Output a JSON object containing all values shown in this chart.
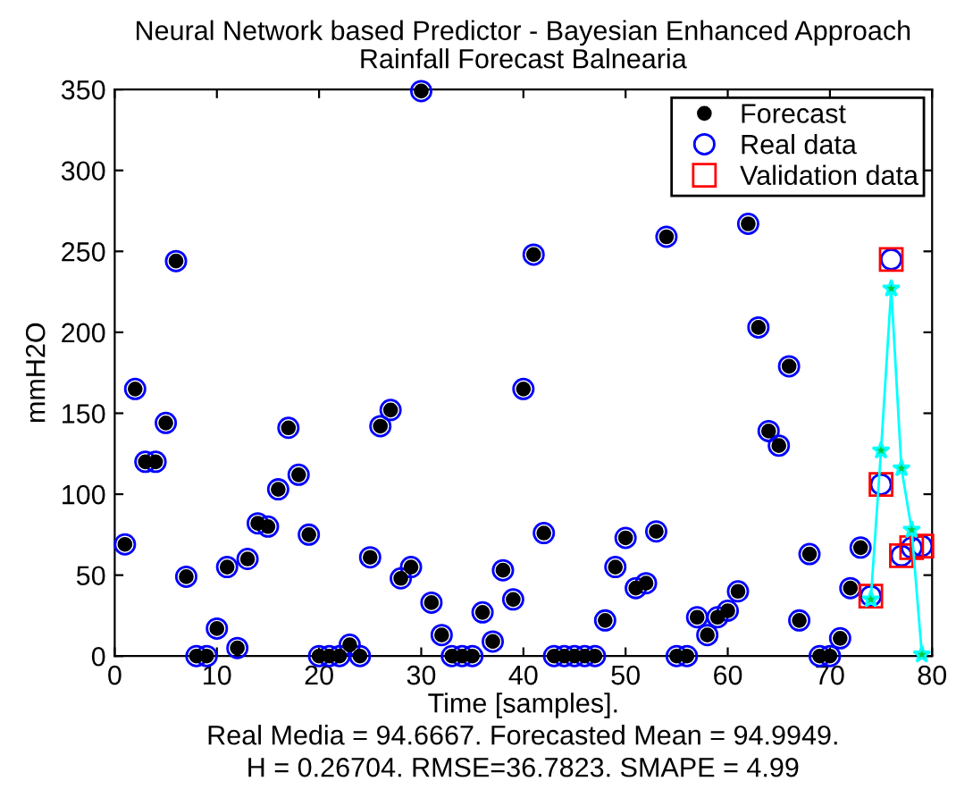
{
  "chart_data": {
    "type": "scatter",
    "title": "Neural Network based Predictor - Bayesian Enhanced Approach",
    "subtitle": "Rainfall Forecast Balnearia",
    "xlabel": "Time [samples].",
    "ylabel": "mmH2O",
    "annotations": [
      "Real Media = 94.6667. Forecasted Mean = 94.9949.",
      "H = 0.26704. RMSE=36.7823. SMAPE = 4.99"
    ],
    "series": [
      {
        "name": "Forecast",
        "marker": "circle",
        "color": "#000000",
        "x": [
          1,
          2,
          3,
          4,
          5,
          6,
          7,
          8,
          9,
          10,
          11,
          12,
          13,
          14,
          15,
          16,
          17,
          18,
          19,
          20,
          21,
          22,
          23,
          24,
          25,
          26,
          27,
          28,
          29,
          30,
          31,
          32,
          33,
          34,
          35,
          36,
          37,
          38,
          39,
          40,
          41,
          42,
          43,
          44,
          45,
          46,
          47,
          48,
          49,
          50,
          51,
          52,
          53,
          54,
          55,
          56,
          57,
          58,
          59,
          60,
          61,
          62,
          63,
          64,
          65,
          66,
          67,
          68,
          69,
          70,
          71,
          72,
          73
        ],
        "values": [
          69,
          165,
          120,
          120,
          144,
          244,
          49,
          0,
          0,
          17,
          55,
          5,
          60,
          82,
          80,
          103,
          141,
          112,
          75,
          0,
          0,
          0,
          7,
          0,
          61,
          142,
          152,
          48,
          55,
          349,
          33,
          13,
          0,
          0,
          0,
          27,
          9,
          53,
          35,
          165,
          248,
          76,
          0,
          0,
          0,
          0,
          0,
          22,
          55,
          73,
          42,
          45,
          77,
          259,
          0,
          0,
          24,
          13,
          24,
          28,
          40,
          267,
          203,
          139,
          130,
          179,
          22,
          63,
          0,
          0,
          11,
          42,
          67
        ]
      },
      {
        "name": "Real data",
        "marker": "circle",
        "color": "#0000ff",
        "x": [
          1,
          2,
          3,
          4,
          5,
          6,
          7,
          8,
          9,
          10,
          11,
          12,
          13,
          14,
          15,
          16,
          17,
          18,
          19,
          20,
          21,
          22,
          23,
          24,
          25,
          26,
          27,
          28,
          29,
          30,
          31,
          32,
          33,
          34,
          35,
          36,
          37,
          38,
          39,
          40,
          41,
          42,
          43,
          44,
          45,
          46,
          47,
          48,
          49,
          50,
          51,
          52,
          53,
          54,
          55,
          56,
          57,
          58,
          59,
          60,
          61,
          62,
          63,
          64,
          65,
          66,
          67,
          68,
          69,
          70,
          71,
          72,
          73,
          74,
          75,
          76,
          77,
          78,
          79
        ],
        "values": [
          69,
          165,
          120,
          120,
          144,
          244,
          49,
          0,
          0,
          17,
          55,
          5,
          60,
          82,
          80,
          103,
          141,
          112,
          75,
          0,
          0,
          0,
          7,
          0,
          61,
          142,
          152,
          48,
          55,
          349,
          33,
          13,
          0,
          0,
          0,
          27,
          9,
          53,
          35,
          165,
          248,
          76,
          0,
          0,
          0,
          0,
          0,
          22,
          55,
          73,
          42,
          45,
          77,
          259,
          0,
          0,
          24,
          13,
          24,
          28,
          40,
          267,
          203,
          139,
          130,
          179,
          22,
          63,
          0,
          0,
          11,
          42,
          67,
          37,
          106,
          245,
          62,
          67,
          68
        ]
      },
      {
        "name": "Validation data",
        "marker": "square",
        "color": "#ff0000",
        "x": [
          74,
          75,
          76,
          77,
          78,
          79
        ],
        "values": [
          37,
          106,
          245,
          62,
          67,
          68
        ]
      },
      {
        "type": "line",
        "marker": "star",
        "color": "#00ffff",
        "x": [
          74,
          75,
          76,
          77,
          78,
          79
        ],
        "values": [
          35,
          127,
          227,
          116,
          78,
          1
        ]
      }
    ],
    "xlim": [
      0,
      80
    ],
    "xticks": [
      0,
      10,
      20,
      30,
      40,
      50,
      60,
      70,
      80
    ],
    "ylim": [
      0,
      350
    ],
    "yticks": [
      0,
      50,
      100,
      150,
      200,
      250,
      300,
      350
    ],
    "grid": false,
    "legend": "top right"
  }
}
